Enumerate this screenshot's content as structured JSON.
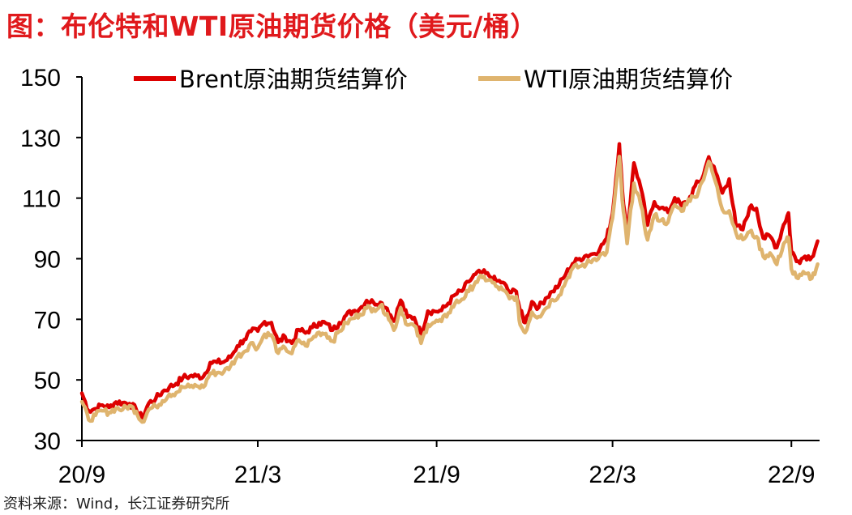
{
  "title": "图：布伦特和WTI原油期货价格（美元/桶）",
  "source": "资料来源：Wind，长江证券研究所",
  "chart_data": {
    "type": "line",
    "xlabel": "",
    "ylabel": "",
    "ylim": [
      30,
      150
    ],
    "y_ticks": [
      30,
      50,
      70,
      90,
      110,
      130,
      150
    ],
    "x_tick_labels": [
      "20/9",
      "21/3",
      "21/9",
      "22/3",
      "22/9"
    ],
    "x_range": [
      "2020-09-01",
      "2022-09-30"
    ],
    "x_ticks": [
      "2020-09-01",
      "2021-03-01",
      "2021-09-01",
      "2022-03-01",
      "2022-09-01"
    ],
    "grid": false,
    "legend_position": "top",
    "series": [
      {
        "name": "Brent原油期货结算价",
        "color": "#dd0000",
        "points": [
          [
            "2020-09-01",
            45.6
          ],
          [
            "2020-09-08",
            39.8
          ],
          [
            "2020-09-15",
            40.5
          ],
          [
            "2020-09-22",
            41.7
          ],
          [
            "2020-09-29",
            40.9
          ],
          [
            "2020-10-06",
            42.7
          ],
          [
            "2020-10-13",
            42.5
          ],
          [
            "2020-10-20",
            42.2
          ],
          [
            "2020-10-27",
            40.2
          ],
          [
            "2020-11-02",
            37.5
          ],
          [
            "2020-11-09",
            42.4
          ],
          [
            "2020-11-16",
            43.8
          ],
          [
            "2020-11-23",
            46.1
          ],
          [
            "2020-11-30",
            47.6
          ],
          [
            "2020-12-07",
            48.8
          ],
          [
            "2020-12-14",
            50.8
          ],
          [
            "2020-12-21",
            51.2
          ],
          [
            "2020-12-28",
            51.3
          ],
          [
            "2021-01-04",
            51.1
          ],
          [
            "2021-01-11",
            55.7
          ],
          [
            "2021-01-18",
            55.8
          ],
          [
            "2021-01-25",
            55.9
          ],
          [
            "2021-02-01",
            57.5
          ],
          [
            "2021-02-08",
            61.2
          ],
          [
            "2021-02-15",
            63.3
          ],
          [
            "2021-02-22",
            66.0
          ],
          [
            "2021-03-01",
            66.1
          ],
          [
            "2021-03-08",
            69.2
          ],
          [
            "2021-03-15",
            68.9
          ],
          [
            "2021-03-22",
            62.4
          ],
          [
            "2021-03-29",
            64.3
          ],
          [
            "2021-04-05",
            62.1
          ],
          [
            "2021-04-12",
            66.6
          ],
          [
            "2021-04-19",
            65.5
          ],
          [
            "2021-04-26",
            67.3
          ],
          [
            "2021-05-03",
            68.9
          ],
          [
            "2021-05-10",
            68.7
          ],
          [
            "2021-05-17",
            66.4
          ],
          [
            "2021-05-24",
            68.9
          ],
          [
            "2021-05-31",
            71.4
          ],
          [
            "2021-06-07",
            72.7
          ],
          [
            "2021-06-14",
            73.5
          ],
          [
            "2021-06-21",
            76.2
          ],
          [
            "2021-06-28",
            75.6
          ],
          [
            "2021-07-05",
            75.6
          ],
          [
            "2021-07-12",
            73.6
          ],
          [
            "2021-07-19",
            69.4
          ],
          [
            "2021-07-26",
            76.3
          ],
          [
            "2021-08-02",
            70.7
          ],
          [
            "2021-08-09",
            70.6
          ],
          [
            "2021-08-16",
            65.2
          ],
          [
            "2021-08-23",
            72.7
          ],
          [
            "2021-08-30",
            72.6
          ],
          [
            "2021-09-06",
            72.9
          ],
          [
            "2021-09-13",
            75.3
          ],
          [
            "2021-09-20",
            78.1
          ],
          [
            "2021-09-27",
            79.3
          ],
          [
            "2021-10-04",
            82.4
          ],
          [
            "2021-10-11",
            84.9
          ],
          [
            "2021-10-18",
            85.5
          ],
          [
            "2021-10-25",
            84.3
          ],
          [
            "2021-11-01",
            82.7
          ],
          [
            "2021-11-08",
            82.2
          ],
          [
            "2021-11-15",
            78.9
          ],
          [
            "2021-11-22",
            79.2
          ],
          [
            "2021-11-26",
            72.7
          ],
          [
            "2021-12-01",
            68.9
          ],
          [
            "2021-12-08",
            75.8
          ],
          [
            "2021-12-15",
            73.9
          ],
          [
            "2021-12-22",
            76.9
          ],
          [
            "2021-12-29",
            79.2
          ],
          [
            "2022-01-05",
            81.4
          ],
          [
            "2022-01-12",
            85.0
          ],
          [
            "2022-01-19",
            88.4
          ],
          [
            "2022-01-26",
            90.0
          ],
          [
            "2022-02-02",
            91.1
          ],
          [
            "2022-02-09",
            91.6
          ],
          [
            "2022-02-16",
            93.3
          ],
          [
            "2022-02-23",
            96.8
          ],
          [
            "2022-03-01",
            104.9
          ],
          [
            "2022-03-08",
            127.9
          ],
          [
            "2022-03-11",
            112.7
          ],
          [
            "2022-03-16",
            98.0
          ],
          [
            "2022-03-23",
            121.6
          ],
          [
            "2022-03-30",
            113.5
          ],
          [
            "2022-04-06",
            101.1
          ],
          [
            "2022-04-13",
            108.8
          ],
          [
            "2022-04-20",
            106.8
          ],
          [
            "2022-04-27",
            105.3
          ],
          [
            "2022-05-04",
            110.1
          ],
          [
            "2022-05-11",
            107.5
          ],
          [
            "2022-05-18",
            109.1
          ],
          [
            "2022-05-25",
            114.0
          ],
          [
            "2022-06-01",
            116.3
          ],
          [
            "2022-06-08",
            123.6
          ],
          [
            "2022-06-15",
            118.5
          ],
          [
            "2022-06-22",
            111.7
          ],
          [
            "2022-06-29",
            116.3
          ],
          [
            "2022-07-06",
            100.7
          ],
          [
            "2022-07-13",
            99.6
          ],
          [
            "2022-07-20",
            106.9
          ],
          [
            "2022-07-27",
            106.6
          ],
          [
            "2022-08-03",
            96.8
          ],
          [
            "2022-08-10",
            97.4
          ],
          [
            "2022-08-17",
            93.7
          ],
          [
            "2022-08-24",
            101.2
          ],
          [
            "2022-08-29",
            105.1
          ],
          [
            "2022-09-01",
            92.4
          ],
          [
            "2022-09-08",
            89.2
          ],
          [
            "2022-09-15",
            90.8
          ],
          [
            "2022-09-22",
            90.5
          ],
          [
            "2022-09-28",
            95.8
          ]
        ]
      },
      {
        "name": "WTI原油期货结算价",
        "color": "#dfb46e",
        "points": [
          [
            "2020-09-01",
            42.8
          ],
          [
            "2020-09-08",
            36.8
          ],
          [
            "2020-09-15",
            38.3
          ],
          [
            "2020-09-22",
            39.8
          ],
          [
            "2020-09-29",
            39.3
          ],
          [
            "2020-10-06",
            40.7
          ],
          [
            "2020-10-13",
            40.2
          ],
          [
            "2020-10-20",
            41.5
          ],
          [
            "2020-10-27",
            39.6
          ],
          [
            "2020-11-02",
            36.1
          ],
          [
            "2020-11-09",
            40.3
          ],
          [
            "2020-11-16",
            41.3
          ],
          [
            "2020-11-23",
            43.1
          ],
          [
            "2020-11-30",
            45.3
          ],
          [
            "2020-12-07",
            45.8
          ],
          [
            "2020-12-14",
            47.6
          ],
          [
            "2020-12-21",
            47.7
          ],
          [
            "2020-12-28",
            48.0
          ],
          [
            "2021-01-04",
            47.6
          ],
          [
            "2021-01-11",
            52.2
          ],
          [
            "2021-01-18",
            52.4
          ],
          [
            "2021-01-25",
            52.6
          ],
          [
            "2021-02-01",
            54.6
          ],
          [
            "2021-02-08",
            57.7
          ],
          [
            "2021-02-15",
            59.3
          ],
          [
            "2021-02-22",
            62.2
          ],
          [
            "2021-03-01",
            60.6
          ],
          [
            "2021-03-08",
            65.1
          ],
          [
            "2021-03-15",
            64.8
          ],
          [
            "2021-03-22",
            58.8
          ],
          [
            "2021-03-29",
            60.6
          ],
          [
            "2021-04-05",
            58.7
          ],
          [
            "2021-04-12",
            63.2
          ],
          [
            "2021-04-19",
            61.3
          ],
          [
            "2021-04-26",
            63.6
          ],
          [
            "2021-05-03",
            65.7
          ],
          [
            "2021-05-10",
            65.3
          ],
          [
            "2021-05-17",
            62.8
          ],
          [
            "2021-05-24",
            66.1
          ],
          [
            "2021-05-31",
            68.8
          ],
          [
            "2021-06-07",
            70.3
          ],
          [
            "2021-06-14",
            71.7
          ],
          [
            "2021-06-21",
            73.7
          ],
          [
            "2021-06-28",
            73.5
          ],
          [
            "2021-07-05",
            74.4
          ],
          [
            "2021-07-12",
            71.9
          ],
          [
            "2021-07-19",
            66.4
          ],
          [
            "2021-07-26",
            73.8
          ],
          [
            "2021-08-02",
            68.1
          ],
          [
            "2021-08-09",
            67.9
          ],
          [
            "2021-08-16",
            62.1
          ],
          [
            "2021-08-23",
            68.3
          ],
          [
            "2021-08-30",
            69.0
          ],
          [
            "2021-09-06",
            69.3
          ],
          [
            "2021-09-13",
            72.1
          ],
          [
            "2021-09-20",
            75.3
          ],
          [
            "2021-09-27",
            76.6
          ],
          [
            "2021-10-04",
            79.2
          ],
          [
            "2021-10-11",
            82.3
          ],
          [
            "2021-10-18",
            83.8
          ],
          [
            "2021-10-25",
            83.0
          ],
          [
            "2021-11-01",
            80.9
          ],
          [
            "2021-11-08",
            79.7
          ],
          [
            "2021-11-15",
            76.8
          ],
          [
            "2021-11-22",
            77.5
          ],
          [
            "2021-11-26",
            68.2
          ],
          [
            "2021-12-01",
            65.6
          ],
          [
            "2021-12-08",
            72.4
          ],
          [
            "2021-12-15",
            70.9
          ],
          [
            "2021-12-22",
            73.5
          ],
          [
            "2021-12-29",
            76.5
          ],
          [
            "2022-01-05",
            77.9
          ],
          [
            "2022-01-12",
            82.6
          ],
          [
            "2022-01-19",
            86.9
          ],
          [
            "2022-01-26",
            87.4
          ],
          [
            "2022-02-02",
            88.3
          ],
          [
            "2022-02-09",
            89.7
          ],
          [
            "2022-02-16",
            91.1
          ],
          [
            "2022-02-23",
            92.1
          ],
          [
            "2022-03-01",
            103.4
          ],
          [
            "2022-03-08",
            123.7
          ],
          [
            "2022-03-11",
            109.3
          ],
          [
            "2022-03-16",
            95.0
          ],
          [
            "2022-03-23",
            114.9
          ],
          [
            "2022-03-30",
            107.8
          ],
          [
            "2022-04-06",
            96.2
          ],
          [
            "2022-04-13",
            104.3
          ],
          [
            "2022-04-20",
            102.7
          ],
          [
            "2022-04-27",
            102.0
          ],
          [
            "2022-05-04",
            107.8
          ],
          [
            "2022-05-11",
            105.7
          ],
          [
            "2022-05-18",
            109.6
          ],
          [
            "2022-05-25",
            110.3
          ],
          [
            "2022-06-01",
            115.3
          ],
          [
            "2022-06-08",
            122.1
          ],
          [
            "2022-06-15",
            115.3
          ],
          [
            "2022-06-22",
            106.2
          ],
          [
            "2022-06-29",
            105.8
          ],
          [
            "2022-07-06",
            98.5
          ],
          [
            "2022-07-13",
            96.3
          ],
          [
            "2022-07-20",
            98.9
          ],
          [
            "2022-07-27",
            97.3
          ],
          [
            "2022-08-03",
            90.7
          ],
          [
            "2022-08-10",
            91.9
          ],
          [
            "2022-08-17",
            88.1
          ],
          [
            "2022-08-24",
            94.9
          ],
          [
            "2022-08-29",
            97.0
          ],
          [
            "2022-09-01",
            86.6
          ],
          [
            "2022-09-08",
            83.5
          ],
          [
            "2022-09-15",
            85.1
          ],
          [
            "2022-09-22",
            83.5
          ],
          [
            "2022-09-28",
            88.2
          ]
        ]
      }
    ]
  }
}
